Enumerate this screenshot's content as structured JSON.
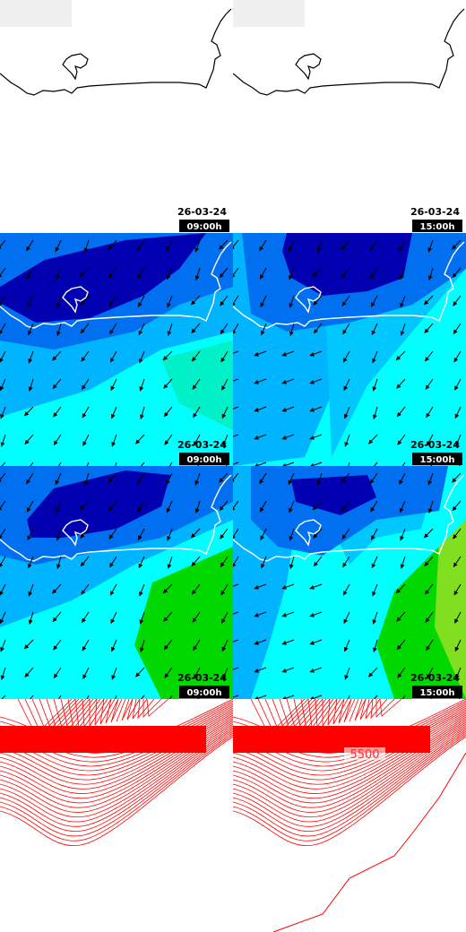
{
  "panels": [
    {
      "date": "26-03-24",
      "time": "09:00h"
    },
    {
      "date": "26-03-24",
      "time": "15:00h"
    },
    {
      "date": "26-03-24",
      "time": "09:00h"
    },
    {
      "date": "26-03-24",
      "time": "15:00h"
    },
    {
      "date": "26-03-24",
      "time": "09:00h"
    },
    {
      "date": "26-03-24",
      "time": "15:00h"
    }
  ],
  "contour_label": "5500"
}
